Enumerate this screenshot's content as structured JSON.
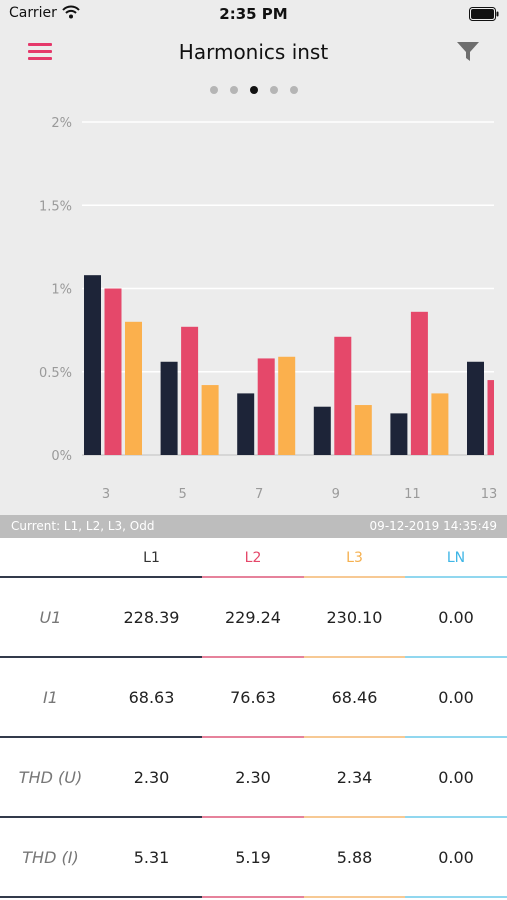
{
  "status_bar": {
    "carrier": "Carrier",
    "time": "2:35 PM"
  },
  "header": {
    "title": "Harmonics inst"
  },
  "pager": {
    "count": 5,
    "active_index": 2
  },
  "chart_data": {
    "type": "bar",
    "categories": [
      "3",
      "5",
      "7",
      "9",
      "11",
      "13"
    ],
    "series": [
      {
        "values": [
          1.08,
          0.56,
          0.37,
          0.29,
          0.25,
          0.56
        ]
      },
      {
        "values": [
          1.0,
          0.77,
          0.58,
          0.71,
          0.86,
          0.45
        ]
      },
      {
        "values": [
          0.8,
          0.42,
          0.59,
          0.3,
          0.37,
          null
        ]
      }
    ],
    "colors": [
      "#1d2438",
      "#e5486a",
      "#fbb04d"
    ],
    "yticks": [
      "0%",
      "0.5%",
      "1%",
      "1.5%",
      "2%"
    ],
    "ylim": [
      0,
      2
    ],
    "grid": true
  },
  "info": {
    "left": "Current: L1, L2, L3, Odd",
    "right": "09-12-2019 14:35:49"
  },
  "table": {
    "columns": [
      {
        "label": "L1",
        "color": "#333333"
      },
      {
        "label": "L2",
        "color": "#e5486a"
      },
      {
        "label": "L3",
        "color": "#f5b04f"
      },
      {
        "label": "LN",
        "color": "#3fb6e6"
      }
    ],
    "rows": [
      {
        "label": "U1",
        "values": [
          "228.39",
          "229.24",
          "230.10",
          "0.00"
        ]
      },
      {
        "label": "I1",
        "values": [
          "68.63",
          "76.63",
          "68.46",
          "0.00"
        ]
      },
      {
        "label": "THD (U)",
        "values": [
          "2.30",
          "2.30",
          "2.34",
          "0.00"
        ]
      },
      {
        "label": "THD (I)",
        "values": [
          "5.31",
          "5.19",
          "5.88",
          "0.00"
        ]
      }
    ]
  }
}
